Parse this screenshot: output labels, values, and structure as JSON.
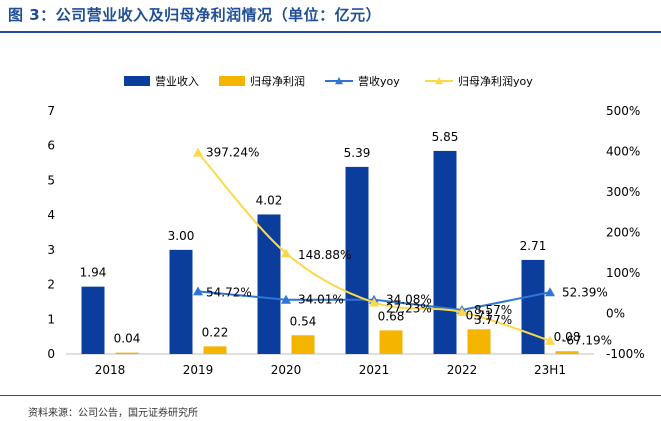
{
  "figure_title": "图 3：公司营业收入及归母净利润情况（单位：亿元）",
  "source_note": "资料来源：公司公告，国元证券研究所",
  "chart_data": {
    "type": "bar",
    "categories": [
      "2018",
      "2019",
      "2020",
      "2021",
      "2022",
      "23H1"
    ],
    "series": [
      {
        "name": "营业收入",
        "type": "bar",
        "axis": "left",
        "color": "#0b3d9c",
        "values": [
          1.94,
          3.0,
          4.02,
          5.39,
          5.85,
          2.71
        ],
        "labels": [
          "1.94",
          "3.00",
          "4.02",
          "5.39",
          "5.85",
          "2.71"
        ]
      },
      {
        "name": "归母净利润",
        "type": "bar",
        "axis": "left",
        "color": "#f5b400",
        "values": [
          0.04,
          0.22,
          0.54,
          0.68,
          0.71,
          0.08
        ],
        "labels": [
          "0.04",
          "0.22",
          "0.54",
          "0.68",
          "0.71",
          "0.08"
        ]
      },
      {
        "name": "营收yoy",
        "type": "line",
        "axis": "right",
        "color": "#2e75d6",
        "marker": "triangle",
        "values": [
          null,
          54.72,
          34.01,
          34.08,
          8.57,
          52.39
        ],
        "labels": [
          "",
          "54.72%",
          "34.01%",
          "34.08%",
          "8.57%",
          "52.39%"
        ]
      },
      {
        "name": "归母净利润yoy",
        "type": "line",
        "axis": "right",
        "color": "#ffd84a",
        "marker": "triangle",
        "values": [
          null,
          397.24,
          148.88,
          27.23,
          3.77,
          -67.19
        ],
        "labels": [
          "",
          "397.24%",
          "148.88%",
          "27.23%",
          "3.77%",
          "-67.19%"
        ]
      }
    ],
    "ylim_left": [
      0,
      7
    ],
    "yticks_left": [
      "0",
      "1",
      "2",
      "3",
      "4",
      "5",
      "6",
      "7"
    ],
    "ylim_right": [
      -100,
      500
    ],
    "yticks_right": [
      "-100%",
      "0%",
      "100%",
      "200%",
      "300%",
      "400%",
      "500%"
    ],
    "legend": "top",
    "grid": false
  }
}
